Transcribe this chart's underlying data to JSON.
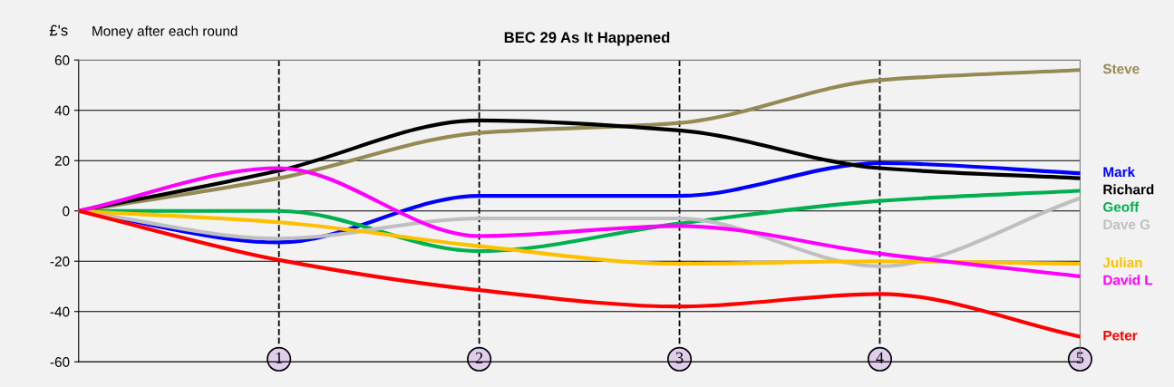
{
  "chart_data": {
    "type": "line",
    "title": "BEC 29 As It Happened",
    "ylabel": "£'s",
    "annotations": [
      "Money after each round"
    ],
    "x": [
      0,
      1,
      2,
      3,
      4,
      5
    ],
    "xlim": [
      0,
      5
    ],
    "xticks": [
      1,
      2,
      3,
      4,
      5
    ],
    "ylim": [
      -60,
      60
    ],
    "yticks": [
      -60,
      -40,
      -20,
      0,
      20,
      40,
      60
    ],
    "grid": "y",
    "legend": false,
    "marker": "none",
    "line_style": "solid",
    "ref_lines": [
      {
        "axis": "x",
        "value": 1,
        "color": "#000000",
        "line_style": "dashed"
      },
      {
        "axis": "x",
        "value": 2,
        "color": "#000000",
        "line_style": "dashed"
      },
      {
        "axis": "x",
        "value": 3,
        "color": "#000000",
        "line_style": "dashed"
      },
      {
        "axis": "x",
        "value": 4,
        "color": "#000000",
        "line_style": "dashed"
      }
    ],
    "series": [
      {
        "name": "Steve",
        "color": "#948a54",
        "values": [
          0,
          13,
          31,
          35,
          52,
          56
        ]
      },
      {
        "name": "Mark",
        "color": "#0000ff",
        "values": [
          0,
          -12.5,
          6,
          6,
          19,
          15
        ]
      },
      {
        "name": "Richard",
        "color": "#000000",
        "values": [
          0,
          16,
          36,
          32,
          17,
          13
        ]
      },
      {
        "name": "Geoff",
        "color": "#00b050",
        "values": [
          0,
          0,
          -16,
          -5,
          4,
          8
        ]
      },
      {
        "name": "Dave G",
        "color": "#bfbfbf",
        "values": [
          0,
          -11,
          -3,
          -3,
          -22,
          5
        ]
      },
      {
        "name": "Julian",
        "color": "#ffc000",
        "values": [
          0,
          -4.5,
          -14,
          -21,
          -20,
          -21
        ]
      },
      {
        "name": "David L",
        "color": "#ff00ff",
        "values": [
          0,
          17,
          -10,
          -6,
          -17,
          -26
        ]
      },
      {
        "name": "Peter",
        "color": "#ff0000",
        "values": [
          0,
          -19.5,
          -31.5,
          -38,
          -33,
          -50
        ]
      }
    ]
  }
}
